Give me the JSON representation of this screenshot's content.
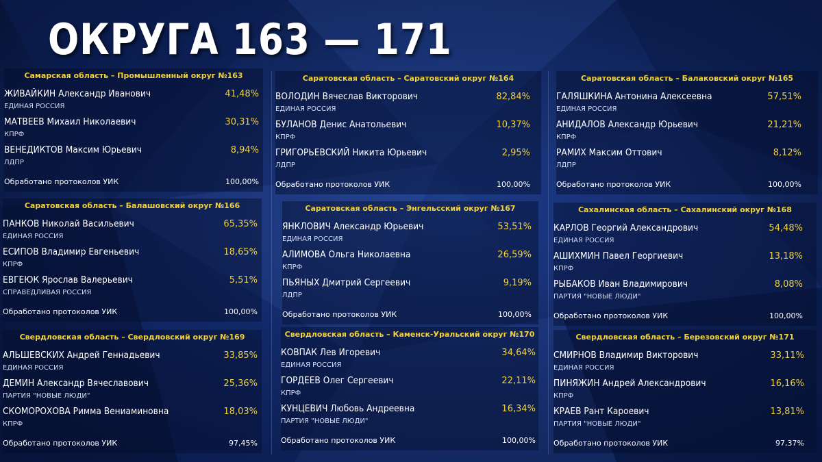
{
  "page_title": "ОКРУГА 163 — 171",
  "processed_label": "Обработано протоколов УИК",
  "districts": [
    {
      "title": "Самарская область – Промышленный округ №163",
      "candidates": [
        {
          "name": "ЖИВАЙКИН Александр Иванович",
          "party": "ЕДИНАЯ РОССИЯ",
          "percent": "41,48%"
        },
        {
          "name": "МАТВЕЕВ Михаил Николаевич",
          "party": "КПРФ",
          "percent": "30,31%"
        },
        {
          "name": "ВЕНЕДИКТОВ Максим Юрьевич",
          "party": "ЛДПР",
          "percent": "8,94%"
        }
      ],
      "processed": "100,00%"
    },
    {
      "title": "Саратовская область – Саратовский округ №164",
      "candidates": [
        {
          "name": "ВОЛОДИН Вячеслав Викторович",
          "party": "ЕДИНАЯ РОССИЯ",
          "percent": "82,84%"
        },
        {
          "name": "БУЛАНОВ Денис Анатольевич",
          "party": "КПРФ",
          "percent": "10,37%"
        },
        {
          "name": "ГРИГОРЬЕВСКИЙ Никита Юрьевич",
          "party": "ЛДПР",
          "percent": "2,95%"
        }
      ],
      "processed": "100,00%"
    },
    {
      "title": "Саратовская область – Балаковский округ №165",
      "candidates": [
        {
          "name": "ГАЛЯШКИНА Антонина Алексеевна",
          "party": "ЕДИНАЯ РОССИЯ",
          "percent": "57,51%"
        },
        {
          "name": "АНИДАЛОВ Александр Юрьевич",
          "party": "КПРФ",
          "percent": "21,21%"
        },
        {
          "name": "РАМИХ Максим Оттович",
          "party": "ЛДПР",
          "percent": "8,12%"
        }
      ],
      "processed": "100,00%"
    },
    {
      "title": "Саратовская область – Балашовский округ №166",
      "candidates": [
        {
          "name": "ПАНКОВ Николай Васильевич",
          "party": "ЕДИНАЯ РОССИЯ",
          "percent": "65,35%"
        },
        {
          "name": "ЕСИПОВ Владимир Евгеньевич",
          "party": "КПРФ",
          "percent": "18,65%"
        },
        {
          "name": "ЕВГЕЮК Ярослав Валерьевич",
          "party": "СПРАВЕДЛИВАЯ РОССИЯ",
          "percent": "5,51%"
        }
      ],
      "processed": "100,00%"
    },
    {
      "title": "Саратовская область – Энгельсский округ №167",
      "candidates": [
        {
          "name": "ЯНКЛОВИЧ Александр Юрьевич",
          "party": "ЕДИНАЯ РОССИЯ",
          "percent": "53,51%"
        },
        {
          "name": "АЛИМОВА Ольга Николаевна",
          "party": "КПРФ",
          "percent": "26,59%"
        },
        {
          "name": "ПЬЯНЫХ Дмитрий Сергеевич",
          "party": "ЛДПР",
          "percent": "9,19%"
        }
      ],
      "processed": "100,00%"
    },
    {
      "title": "Сахалинская область – Сахалинский округ №168",
      "candidates": [
        {
          "name": "КАРЛОВ Георгий Александрович",
          "party": "ЕДИНАЯ РОССИЯ",
          "percent": "54,48%"
        },
        {
          "name": "АШИХМИН Павел Георгиевич",
          "party": "КПРФ",
          "percent": "13,18%"
        },
        {
          "name": "РЫБАКОВ Иван Владимирович",
          "party": "ПАРТИЯ \"НОВЫЕ ЛЮДИ\"",
          "percent": "8,08%"
        }
      ],
      "processed": "100,00%"
    },
    {
      "title": "Свердловская область – Свердловский округ №169",
      "candidates": [
        {
          "name": "АЛЬШЕВСКИХ Андрей Геннадьевич",
          "party": "ЕДИНАЯ РОССИЯ",
          "percent": "33,85%"
        },
        {
          "name": "ДЕМИН Александр Вячеславович",
          "party": "ПАРТИЯ \"НОВЫЕ ЛЮДИ\"",
          "percent": "25,36%"
        },
        {
          "name": "СКОМОРОХОВА Римма Вениаминовна",
          "party": "КПРФ",
          "percent": "18,03%"
        }
      ],
      "processed": "97,45%"
    },
    {
      "title": "Свердловская область – Каменск-Уральский округ №170",
      "candidates": [
        {
          "name": "КОВПАК Лев Игоревич",
          "party": "ЕДИНАЯ РОССИЯ",
          "percent": "34,64%"
        },
        {
          "name": "ГОРДЕЕВ Олег Сергеевич",
          "party": "КПРФ",
          "percent": "22,11%"
        },
        {
          "name": "КУНЦЕВИЧ Любовь Андреевна",
          "party": "ПАРТИЯ \"НОВЫЕ ЛЮДИ\"",
          "percent": "16,34%"
        }
      ],
      "processed": "100,00%"
    },
    {
      "title": "Свердловская область – Березовский округ №171",
      "candidates": [
        {
          "name": "СМИРНОВ Владимир Викторович",
          "party": "ЕДИНАЯ РОССИЯ",
          "percent": "33,11%"
        },
        {
          "name": "ПИНЯЖИН Андрей Александрович",
          "party": "КПРФ",
          "percent": "16,16%"
        },
        {
          "name": "КРАЕВ Рант Кароевич",
          "party": "ПАРТИЯ \"НОВЫЕ ЛЮДИ\"",
          "percent": "13,81%"
        }
      ],
      "processed": "97,37%"
    }
  ]
}
